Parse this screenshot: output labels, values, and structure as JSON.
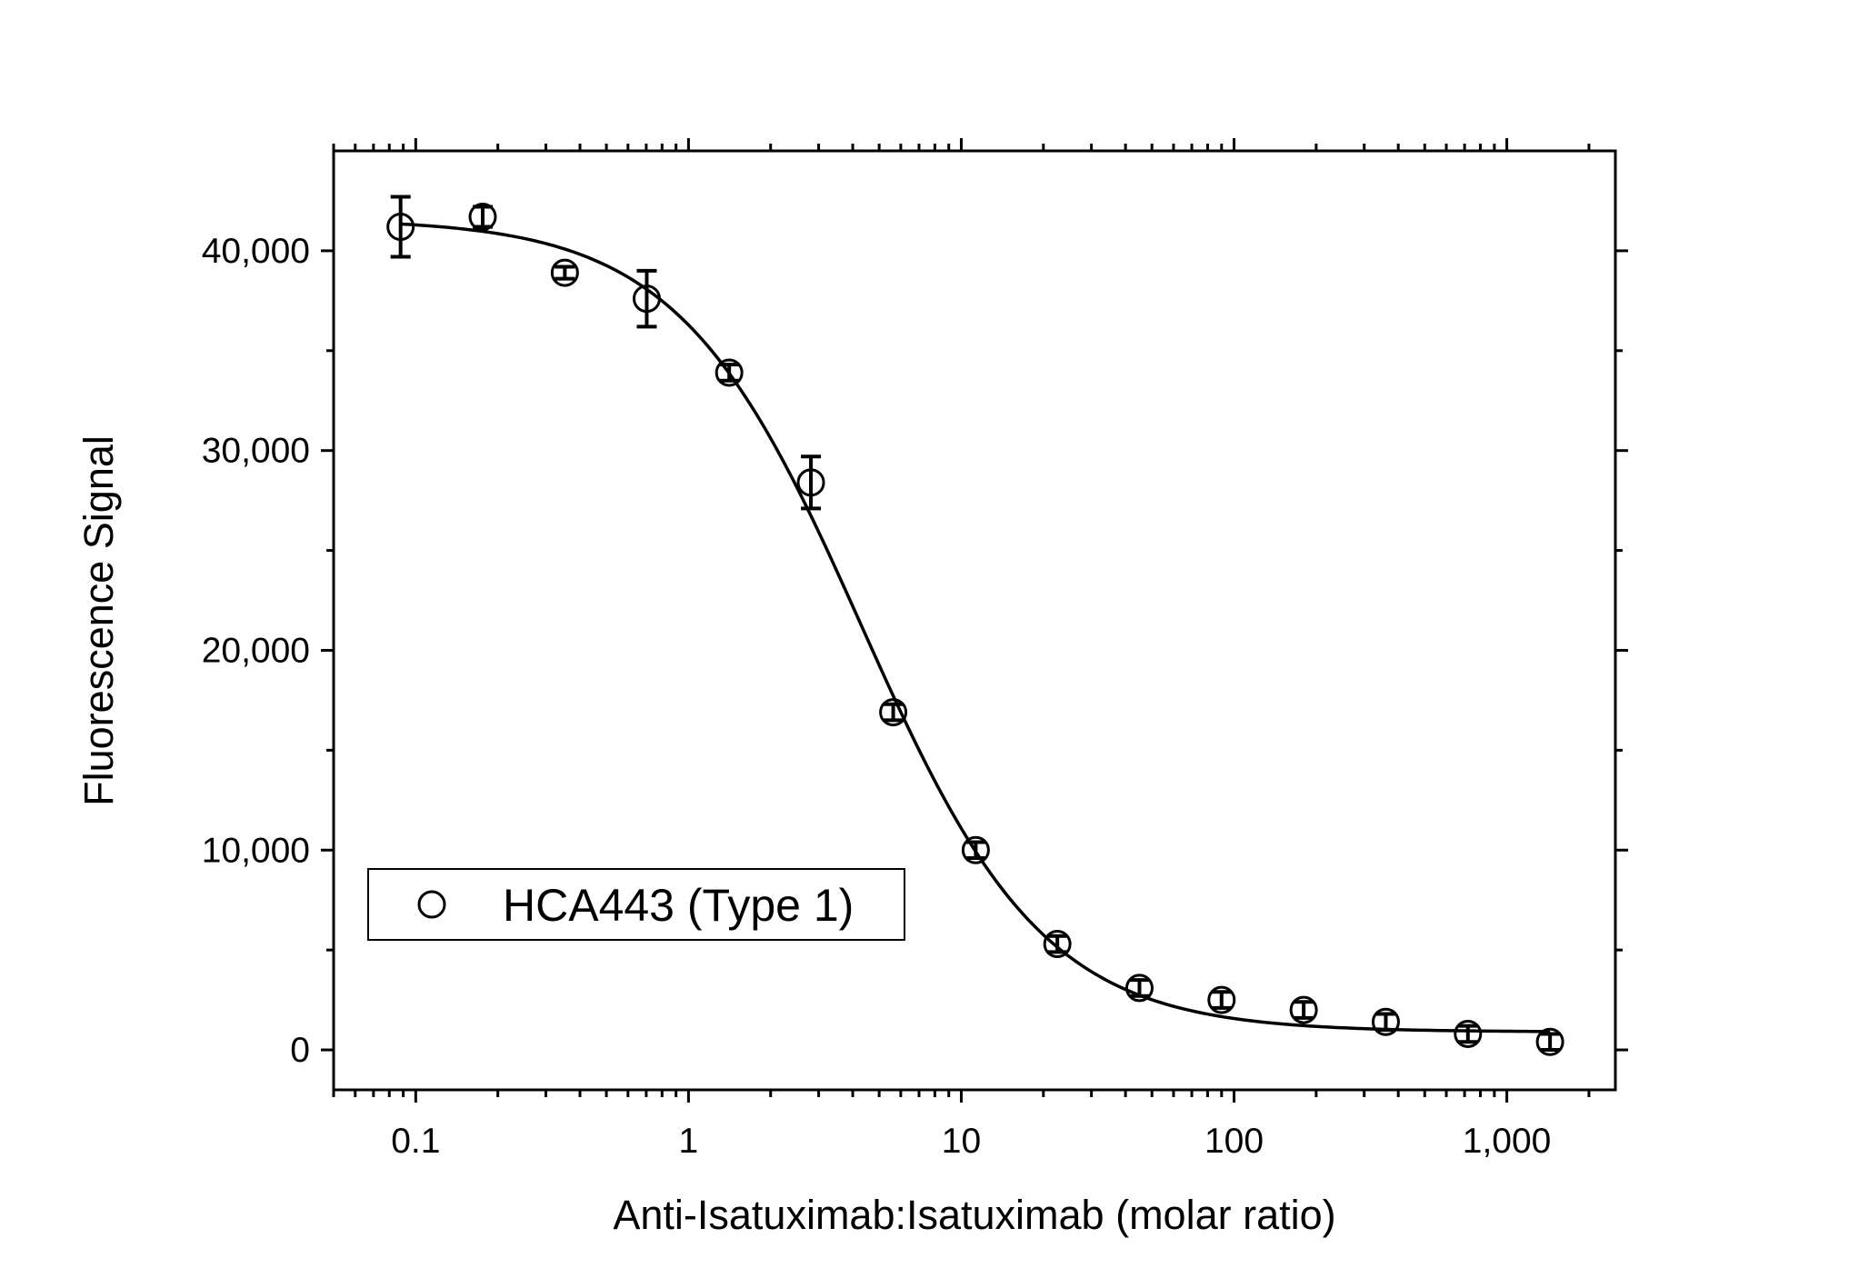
{
  "chart_data": {
    "type": "scatter",
    "title": "",
    "xlabel": "Anti-Isatuximab:Isatuximab (molar ratio)",
    "ylabel": "Fluorescence Signal",
    "x_scale": "log",
    "xlim": [
      0.05,
      2500
    ],
    "ylim": [
      -2000,
      45000
    ],
    "x_ticks": [
      {
        "value": 0.1,
        "label": "0.1"
      },
      {
        "value": 1,
        "label": "1"
      },
      {
        "value": 10,
        "label": "10"
      },
      {
        "value": 100,
        "label": "100"
      },
      {
        "value": 1000,
        "label": "1,000"
      }
    ],
    "y_ticks": [
      {
        "value": 0,
        "label": "0"
      },
      {
        "value": 10000,
        "label": "10,000"
      },
      {
        "value": 20000,
        "label": "20,000"
      },
      {
        "value": 30000,
        "label": "30,000"
      },
      {
        "value": 40000,
        "label": "40,000"
      }
    ],
    "grid": false,
    "legend": {
      "position": "bottom-left",
      "marker": "open-circle"
    },
    "series": [
      {
        "name": "HCA443 (Type 1)",
        "marker": "open-circle",
        "x": [
          0.088,
          0.176,
          0.352,
          0.703,
          1.41,
          2.81,
          5.63,
          11.3,
          22.5,
          45,
          90,
          180,
          360,
          720,
          1440
        ],
        "y": [
          41200,
          41700,
          38900,
          37600,
          33900,
          28400,
          16900,
          10000,
          5300,
          3100,
          2500,
          2000,
          1400,
          800,
          400
        ],
        "err": [
          1500,
          500,
          300,
          1400,
          400,
          1300,
          400,
          400,
          400,
          400,
          400,
          400,
          400,
          400,
          400
        ]
      }
    ],
    "fit_curve": {
      "model": "4PL",
      "top": 41600,
      "bottom": 900,
      "ec50": 4.3,
      "hill": 1.3
    }
  }
}
